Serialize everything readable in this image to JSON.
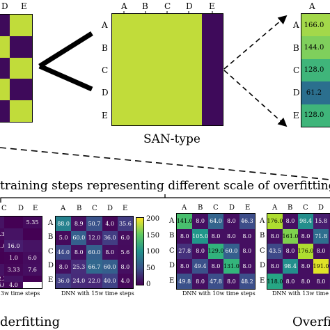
{
  "top": {
    "left_partial": {
      "col_labels": [
        "D",
        "E"
      ],
      "cells": [
        [
          "purple",
          "green"
        ],
        [
          "green",
          "purple"
        ],
        [
          "purple",
          "green"
        ],
        [
          "green",
          "purple"
        ],
        [
          "purple",
          "green"
        ]
      ]
    },
    "san": {
      "col_labels": [
        "A",
        "B",
        "C",
        "D",
        "E"
      ],
      "row_labels": [
        "A",
        "B",
        "C",
        "D",
        "E"
      ],
      "caption": "SAN-type"
    },
    "right_partial": {
      "col_labels": [
        "A"
      ],
      "row_labels": [
        "A",
        "B",
        "C",
        "D",
        "E"
      ],
      "values": [
        "166.0",
        "144.0",
        "128.0",
        "61.2",
        "128.0"
      ]
    }
  },
  "section_title": "training steps representing different scale of overfitting",
  "bottom": {
    "underfitting_label": "derfitting",
    "overfitting_label": "Overfitt",
    "hm1": {
      "col_labels": [
        "C",
        "D",
        "E"
      ],
      "row_labels": [],
      "caption": "3w time steps",
      "values": [
        [
          "",
          "5.35",
          "5.38"
        ],
        [
          "",
          "1.0",
          "16.0"
        ],
        [
          "",
          "1.0",
          "6.0"
        ],
        [
          "3.33",
          "7.6",
          "2.3"
        ],
        [
          "",
          "6.0",
          "4.0"
        ]
      ]
    },
    "hm2": {
      "col_labels": [
        "A",
        "B",
        "C",
        "D",
        "E"
      ],
      "row_labels": [
        "A",
        "B",
        "C",
        "D",
        "E"
      ],
      "caption": "DNN with 15w time steps",
      "values": [
        [
          "88.0",
          "8.9",
          "50.7",
          "4.0",
          "35.6"
        ],
        [
          "5.0",
          "60.0",
          "12.0",
          "36.0",
          "6.0"
        ],
        [
          "44.0",
          "8.0",
          "60.0",
          "8.0",
          "5.6"
        ],
        [
          "8.0",
          "25.3",
          "66.7",
          "60.0",
          "8.0"
        ],
        [
          "36.0",
          "24.0",
          "22.0",
          "40.0",
          "4.0"
        ]
      ]
    },
    "colorbar": {
      "ticks": [
        "200",
        "150",
        "100",
        "50",
        "0"
      ]
    },
    "hm3": {
      "col_labels": [
        "A",
        "B",
        "C",
        "D",
        "E"
      ],
      "row_labels": [
        "A",
        "B",
        "C",
        "D",
        "E"
      ],
      "caption": "DNN with 10w time steps",
      "values": [
        [
          "141.0",
          "8.0",
          "64.0",
          "8.0",
          "46.3"
        ],
        [
          "8.0",
          "105.0",
          "8.0",
          "8.0",
          "8.0"
        ],
        [
          "27.8",
          "8.0",
          "129.0",
          "60.0",
          "8.0"
        ],
        [
          "8.0",
          "49.4",
          "8.0",
          "131.0",
          "8.0"
        ],
        [
          "49.8",
          "8.0",
          "47.8",
          "8.0",
          "48.2"
        ]
      ]
    },
    "hm4": {
      "col_labels": [
        "A",
        "B",
        "C",
        "D"
      ],
      "row_labels": [
        "A",
        "B",
        "C",
        "D",
        "E"
      ],
      "caption": "DNN with 13w time steps",
      "values": [
        [
          "176.0",
          "8.0",
          "98.4",
          "15.8"
        ],
        [
          "8.0",
          "161.0",
          "8.0",
          "71.8"
        ],
        [
          "43.5",
          "8.0",
          "176.0",
          "8.0"
        ],
        [
          "8.0",
          "98.4",
          "8.0",
          "191.0"
        ],
        [
          "118.0",
          "8.0",
          "8.0",
          "8.0"
        ]
      ]
    }
  }
}
